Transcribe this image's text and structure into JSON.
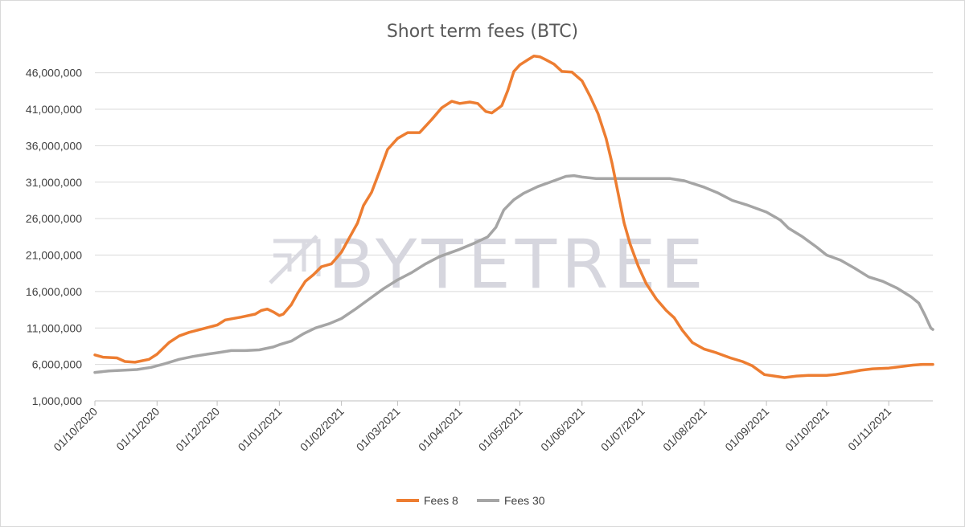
{
  "chart_data": {
    "type": "line",
    "title": "Short term fees (BTC)",
    "xlabel": "",
    "ylabel": "",
    "ylim": [
      1000000,
      48500000
    ],
    "y_ticks": [
      1000000,
      6000000,
      11000000,
      16000000,
      21000000,
      26000000,
      31000000,
      36000000,
      41000000,
      46000000
    ],
    "y_tick_labels": [
      "1,000,000",
      "6,000,000",
      "11,000,000",
      "16,000,000",
      "21,000,000",
      "26,000,000",
      "31,000,000",
      "36,000,000",
      "41,000,000",
      "46,000,000"
    ],
    "x_range": [
      "2020-10-01",
      "2021-11-23"
    ],
    "x_ticks": [
      "2020-10-01",
      "2020-11-01",
      "2020-12-01",
      "2021-01-01",
      "2021-02-01",
      "2021-03-01",
      "2021-04-01",
      "2021-05-01",
      "2021-06-01",
      "2021-07-01",
      "2021-08-01",
      "2021-09-01",
      "2021-10-01",
      "2021-11-01"
    ],
    "x_tick_labels": [
      "01/10/2020",
      "01/11/2020",
      "01/12/2020",
      "01/01/2021",
      "01/02/2021",
      "01/03/2021",
      "01/04/2021",
      "01/05/2021",
      "01/06/2021",
      "01/07/2021",
      "01/08/2021",
      "01/09/2021",
      "01/10/2021",
      "01/11/2021"
    ],
    "grid": "horizontal",
    "legend_position": "bottom",
    "colors": {
      "Fees 8": "#ed7d31",
      "Fees 30": "#a5a5a5"
    },
    "series": [
      {
        "name": "Fees 8",
        "points": [
          [
            "2020-10-01",
            7300000
          ],
          [
            "2020-10-05",
            7000000
          ],
          [
            "2020-10-12",
            6900000
          ],
          [
            "2020-10-16",
            6400000
          ],
          [
            "2020-10-21",
            6300000
          ],
          [
            "2020-10-28",
            6700000
          ],
          [
            "2020-11-01",
            7400000
          ],
          [
            "2020-11-07",
            9000000
          ],
          [
            "2020-11-12",
            9900000
          ],
          [
            "2020-11-17",
            10400000
          ],
          [
            "2020-11-24",
            10900000
          ],
          [
            "2020-12-01",
            11400000
          ],
          [
            "2020-12-05",
            12100000
          ],
          [
            "2020-12-13",
            12500000
          ],
          [
            "2020-12-20",
            12900000
          ],
          [
            "2020-12-23",
            13400000
          ],
          [
            "2020-12-26",
            13600000
          ],
          [
            "2020-12-29",
            13200000
          ],
          [
            "2021-01-01",
            12700000
          ],
          [
            "2021-01-03",
            12900000
          ],
          [
            "2021-01-07",
            14200000
          ],
          [
            "2021-01-10",
            15700000
          ],
          [
            "2021-01-14",
            17400000
          ],
          [
            "2021-01-18",
            18300000
          ],
          [
            "2021-01-22",
            19400000
          ],
          [
            "2021-01-27",
            19800000
          ],
          [
            "2021-02-01",
            21400000
          ],
          [
            "2021-02-05",
            23400000
          ],
          [
            "2021-02-09",
            25400000
          ],
          [
            "2021-02-12",
            27800000
          ],
          [
            "2021-02-16",
            29600000
          ],
          [
            "2021-02-20",
            32500000
          ],
          [
            "2021-02-24",
            35500000
          ],
          [
            "2021-03-01",
            37000000
          ],
          [
            "2021-03-06",
            37800000
          ],
          [
            "2021-03-12",
            37800000
          ],
          [
            "2021-03-18",
            39600000
          ],
          [
            "2021-03-23",
            41200000
          ],
          [
            "2021-03-28",
            42100000
          ],
          [
            "2021-04-01",
            41800000
          ],
          [
            "2021-04-06",
            42000000
          ],
          [
            "2021-04-10",
            41800000
          ],
          [
            "2021-04-14",
            40700000
          ],
          [
            "2021-04-17",
            40500000
          ],
          [
            "2021-04-22",
            41500000
          ],
          [
            "2021-04-25",
            43600000
          ],
          [
            "2021-04-28",
            46200000
          ],
          [
            "2021-05-01",
            47100000
          ],
          [
            "2021-05-05",
            47800000
          ],
          [
            "2021-05-08",
            48300000
          ],
          [
            "2021-05-11",
            48200000
          ],
          [
            "2021-05-14",
            47800000
          ],
          [
            "2021-05-18",
            47200000
          ],
          [
            "2021-05-22",
            46200000
          ],
          [
            "2021-05-27",
            46100000
          ],
          [
            "2021-06-01",
            44900000
          ],
          [
            "2021-06-05",
            42800000
          ],
          [
            "2021-06-09",
            40400000
          ],
          [
            "2021-06-13",
            37000000
          ],
          [
            "2021-06-16",
            33600000
          ],
          [
            "2021-06-19",
            29500000
          ],
          [
            "2021-06-22",
            25400000
          ],
          [
            "2021-06-25",
            22500000
          ],
          [
            "2021-06-29",
            19500000
          ],
          [
            "2021-07-03",
            17100000
          ],
          [
            "2021-07-08",
            15000000
          ],
          [
            "2021-07-13",
            13400000
          ],
          [
            "2021-07-17",
            12400000
          ],
          [
            "2021-07-21",
            10700000
          ],
          [
            "2021-07-26",
            9000000
          ],
          [
            "2021-08-01",
            8100000
          ],
          [
            "2021-08-07",
            7600000
          ],
          [
            "2021-08-14",
            6900000
          ],
          [
            "2021-08-20",
            6400000
          ],
          [
            "2021-08-25",
            5800000
          ],
          [
            "2021-08-31",
            4600000
          ],
          [
            "2021-09-05",
            4400000
          ],
          [
            "2021-09-10",
            4200000
          ],
          [
            "2021-09-16",
            4400000
          ],
          [
            "2021-09-22",
            4500000
          ],
          [
            "2021-10-01",
            4500000
          ],
          [
            "2021-10-05",
            4600000
          ],
          [
            "2021-10-12",
            4900000
          ],
          [
            "2021-10-18",
            5200000
          ],
          [
            "2021-10-24",
            5400000
          ],
          [
            "2021-11-01",
            5500000
          ],
          [
            "2021-11-07",
            5700000
          ],
          [
            "2021-11-13",
            5900000
          ],
          [
            "2021-11-18",
            6000000
          ],
          [
            "2021-11-23",
            6000000
          ]
        ]
      },
      {
        "name": "Fees 30",
        "points": [
          [
            "2020-10-01",
            4900000
          ],
          [
            "2020-10-08",
            5100000
          ],
          [
            "2020-10-15",
            5200000
          ],
          [
            "2020-10-22",
            5300000
          ],
          [
            "2020-10-29",
            5600000
          ],
          [
            "2020-11-05",
            6100000
          ],
          [
            "2020-11-12",
            6700000
          ],
          [
            "2020-11-19",
            7100000
          ],
          [
            "2020-11-26",
            7400000
          ],
          [
            "2020-12-01",
            7600000
          ],
          [
            "2020-12-08",
            7900000
          ],
          [
            "2020-12-15",
            7900000
          ],
          [
            "2020-12-22",
            8000000
          ],
          [
            "2020-12-29",
            8400000
          ],
          [
            "2021-01-01",
            8700000
          ],
          [
            "2021-01-07",
            9200000
          ],
          [
            "2021-01-13",
            10200000
          ],
          [
            "2021-01-19",
            11000000
          ],
          [
            "2021-01-26",
            11600000
          ],
          [
            "2021-02-01",
            12300000
          ],
          [
            "2021-02-08",
            13600000
          ],
          [
            "2021-02-15",
            15000000
          ],
          [
            "2021-02-22",
            16400000
          ],
          [
            "2021-03-01",
            17600000
          ],
          [
            "2021-03-08",
            18600000
          ],
          [
            "2021-03-15",
            19800000
          ],
          [
            "2021-03-22",
            20800000
          ],
          [
            "2021-04-01",
            21800000
          ],
          [
            "2021-04-08",
            22600000
          ],
          [
            "2021-04-15",
            23500000
          ],
          [
            "2021-04-19",
            24800000
          ],
          [
            "2021-04-23",
            27200000
          ],
          [
            "2021-04-28",
            28600000
          ],
          [
            "2021-05-03",
            29500000
          ],
          [
            "2021-05-10",
            30400000
          ],
          [
            "2021-05-17",
            31100000
          ],
          [
            "2021-05-24",
            31800000
          ],
          [
            "2021-05-28",
            31900000
          ],
          [
            "2021-06-01",
            31700000
          ],
          [
            "2021-06-08",
            31500000
          ],
          [
            "2021-06-15",
            31500000
          ],
          [
            "2021-06-22",
            31500000
          ],
          [
            "2021-07-01",
            31500000
          ],
          [
            "2021-07-10",
            31500000
          ],
          [
            "2021-07-15",
            31500000
          ],
          [
            "2021-07-22",
            31200000
          ],
          [
            "2021-08-01",
            30300000
          ],
          [
            "2021-08-08",
            29500000
          ],
          [
            "2021-08-15",
            28500000
          ],
          [
            "2021-08-22",
            27900000
          ],
          [
            "2021-09-01",
            26900000
          ],
          [
            "2021-09-08",
            25800000
          ],
          [
            "2021-09-12",
            24700000
          ],
          [
            "2021-09-19",
            23500000
          ],
          [
            "2021-09-26",
            22100000
          ],
          [
            "2021-10-01",
            21000000
          ],
          [
            "2021-10-08",
            20300000
          ],
          [
            "2021-10-15",
            19200000
          ],
          [
            "2021-10-22",
            18000000
          ],
          [
            "2021-10-29",
            17400000
          ],
          [
            "2021-11-05",
            16500000
          ],
          [
            "2021-11-12",
            15300000
          ],
          [
            "2021-11-16",
            14400000
          ],
          [
            "2021-11-19",
            12800000
          ],
          [
            "2021-11-22",
            11000000
          ],
          [
            "2021-11-23",
            10800000
          ]
        ]
      }
    ]
  },
  "watermark": {
    "text": "BYTETREE",
    "icon": "bytetree-chevron-logo"
  }
}
